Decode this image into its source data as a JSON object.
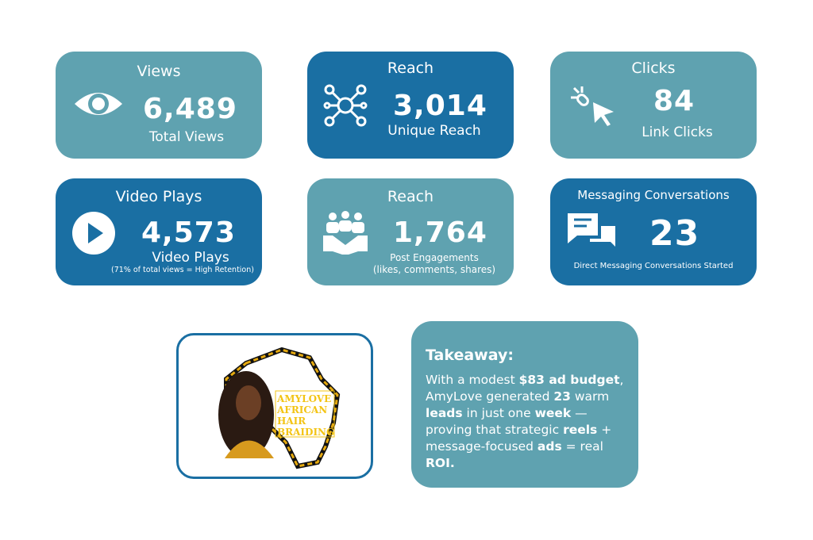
{
  "colors": {
    "teal": "#5fa2b0",
    "blue": "#1a6fa3"
  },
  "cards": [
    {
      "title": "Views",
      "value": "6,489",
      "label": "Total Views",
      "icon": "eye-icon"
    },
    {
      "title": "Reach",
      "value": "3,014",
      "label": "Unique Reach",
      "icon": "network-icon"
    },
    {
      "title": "Clicks",
      "value": "84",
      "label": "Link Clicks",
      "icon": "cursor-click-icon"
    },
    {
      "title": "Video Plays",
      "value": "4,573",
      "label": "Video Plays",
      "note": "(71% of total views = High Retention)",
      "icon": "play-icon"
    },
    {
      "title": "Reach",
      "value": "1,764",
      "label": "Post Engagements",
      "note": "(likes, comments, shares)",
      "icon": "handshake-icon"
    },
    {
      "title": "Messaging Conversations",
      "value": "23",
      "label": "Direct Messaging Conversations Started",
      "icon": "chat-icon"
    }
  ],
  "logo": {
    "text": "AMYLOVE AFRICAN HAIR BRAIDING"
  },
  "takeaway": {
    "heading": "Takeaway:",
    "segments": [
      {
        "t": "With a modest ",
        "b": false
      },
      {
        "t": "$83 ad budget",
        "b": true
      },
      {
        "t": ", AmyLove generated ",
        "b": false
      },
      {
        "t": "23",
        "b": true
      },
      {
        "t": " warm ",
        "b": false
      },
      {
        "t": "leads",
        "b": true
      },
      {
        "t": " in just one ",
        "b": false
      },
      {
        "t": "week",
        "b": true
      },
      {
        "t": " — proving that strategic ",
        "b": false
      },
      {
        "t": "reels",
        "b": true
      },
      {
        "t": " + message-focused ",
        "b": false
      },
      {
        "t": "ads",
        "b": true
      },
      {
        "t": " = real ",
        "b": false
      },
      {
        "t": "ROI.",
        "b": true
      }
    ]
  }
}
